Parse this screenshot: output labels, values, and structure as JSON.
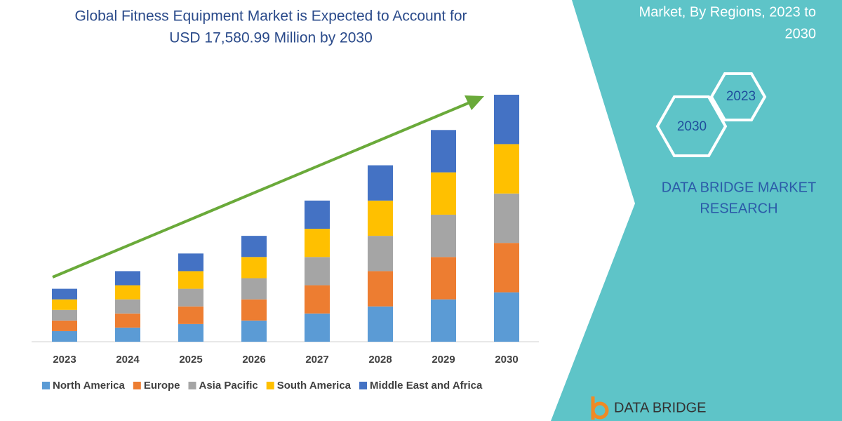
{
  "chart_data": {
    "type": "bar",
    "stacked": true,
    "title": [
      "Global Fitness Equipment Market is Expected to Account for",
      "USD 17,580.99 Million by 2030"
    ],
    "categories": [
      "2023",
      "2024",
      "2025",
      "2026",
      "2027",
      "2028",
      "2029",
      "2030"
    ],
    "series": [
      {
        "name": "North America",
        "color": "#5b9bd5",
        "values": [
          15,
          20,
          25,
          30,
          40,
          50,
          60,
          70
        ]
      },
      {
        "name": "Europe",
        "color": "#ed7d31",
        "values": [
          15,
          20,
          25,
          30,
          40,
          50,
          60,
          70
        ]
      },
      {
        "name": "Asia Pacific",
        "color": "#a5a5a5",
        "values": [
          15,
          20,
          25,
          30,
          40,
          50,
          60,
          70
        ]
      },
      {
        "name": "South America",
        "color": "#ffc000",
        "values": [
          15,
          20,
          25,
          30,
          40,
          50,
          60,
          70
        ]
      },
      {
        "name": "Middle East and Africa",
        "color": "#4472c4",
        "values": [
          15,
          20,
          25,
          30,
          40,
          50,
          60,
          70
        ]
      }
    ]
  },
  "side_panel": {
    "caption": [
      "Market, By Regions, 2023 to",
      "2030"
    ],
    "hexagons": [
      "2023",
      "2030"
    ],
    "brand": [
      "DATA BRIDGE MARKET",
      "RESEARCH"
    ],
    "logo": "DATA BRIDGE"
  }
}
